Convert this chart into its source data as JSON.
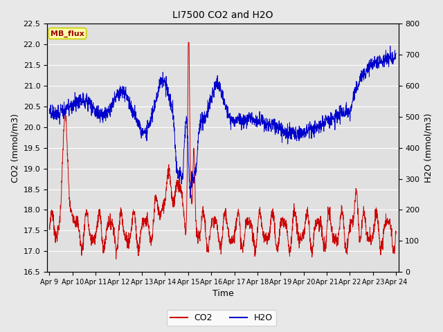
{
  "title": "LI7500 CO2 and H2O",
  "xlabel": "Time",
  "ylabel_left": "CO2 (mmol/m3)",
  "ylabel_right": "H2O (mmol/m3)",
  "co2_ylim": [
    16.5,
    22.5
  ],
  "h2o_ylim": [
    0,
    800
  ],
  "co2_color": "#cc0000",
  "h2o_color": "#0000cc",
  "fig_facecolor": "#e8e8e8",
  "axes_facecolor": "#e0e0e0",
  "grid_color": "#f0f0f0",
  "annotation_text": "MB_flux",
  "annotation_bg": "#ffffaa",
  "annotation_border": "#cccc00",
  "xtick_labels": [
    "Apr 9",
    "Apr 10",
    "Apr 11",
    "Apr 12",
    "Apr 13",
    "Apr 14",
    "Apr 15",
    "Apr 16",
    "Apr 17",
    "Apr 18",
    "Apr 19",
    "Apr 20",
    "Apr 21",
    "Apr 22",
    "Apr 23",
    "Apr 24"
  ],
  "n_points": 2000
}
